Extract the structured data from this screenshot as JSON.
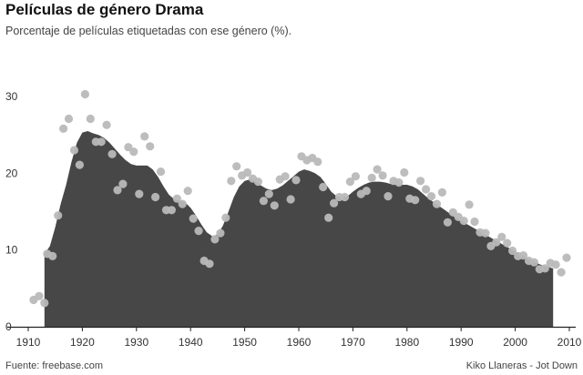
{
  "chart_data": {
    "type": "area",
    "title": "Películas de género Drama",
    "subtitle": "Porcentaje de películas etiquetadas con ese género (%).",
    "source": "Fuente: freebase.com",
    "credit": "Kiko Llaneras - Jot Down",
    "xlim": [
      1910,
      2010
    ],
    "ylim": [
      0,
      32
    ],
    "xticks": [
      1910,
      1920,
      1930,
      1940,
      1950,
      1960,
      1970,
      1980,
      1990,
      2000,
      2010
    ],
    "yticks": [
      0,
      10,
      20,
      30
    ],
    "grid": false,
    "colors": {
      "area": "#474747",
      "points": "#b9b9b9",
      "axis": "#222222"
    },
    "series": [
      {
        "type": "area",
        "x": [
          1913,
          1914,
          1915,
          1916,
          1917,
          1918,
          1919,
          1920,
          1921,
          1922,
          1923,
          1924,
          1925,
          1926,
          1927,
          1928,
          1929,
          1930,
          1931,
          1932,
          1933,
          1934,
          1935,
          1936,
          1937,
          1938,
          1939,
          1940,
          1941,
          1942,
          1943,
          1944,
          1945,
          1946,
          1947,
          1948,
          1949,
          1950,
          1951,
          1952,
          1953,
          1954,
          1955,
          1956,
          1957,
          1958,
          1959,
          1960,
          1961,
          1962,
          1963,
          1964,
          1965,
          1966,
          1967,
          1968,
          1969,
          1970,
          1971,
          1972,
          1973,
          1974,
          1975,
          1976,
          1977,
          1978,
          1979,
          1980,
          1981,
          1982,
          1983,
          1984,
          1985,
          1986,
          1987,
          1988,
          1989,
          1990,
          1991,
          1992,
          1993,
          1994,
          1995,
          1996,
          1997,
          1998,
          1999,
          2000,
          2001,
          2002,
          2003,
          2004,
          2005,
          2006,
          2007
        ],
        "values": [
          9.5,
          10.5,
          13.0,
          16.0,
          18.5,
          21.5,
          24.0,
          25.3,
          25.5,
          25.2,
          25.0,
          24.6,
          24.0,
          23.2,
          22.4,
          21.7,
          21.2,
          21.0,
          21.0,
          21.0,
          20.5,
          19.5,
          18.3,
          17.2,
          16.6,
          16.4,
          16.2,
          15.5,
          14.5,
          13.3,
          12.3,
          11.8,
          12.0,
          13.2,
          15.0,
          16.9,
          18.3,
          19.0,
          19.2,
          18.9,
          18.4,
          18.0,
          17.8,
          18.0,
          18.4,
          19.0,
          19.6,
          20.2,
          20.5,
          20.3,
          20.0,
          19.5,
          18.6,
          17.6,
          17.0,
          16.8,
          17.0,
          17.6,
          18.1,
          18.5,
          18.8,
          18.9,
          18.9,
          18.8,
          18.6,
          18.5,
          18.5,
          18.5,
          18.3,
          17.9,
          17.3,
          16.7,
          16.2,
          15.7,
          15.2,
          14.7,
          14.2,
          13.8,
          13.4,
          13.0,
          12.6,
          12.2,
          11.8,
          11.4,
          11.0,
          10.6,
          10.2,
          9.8,
          9.4,
          9.0,
          8.6,
          8.3,
          8.0,
          7.8,
          7.6
        ]
      },
      {
        "type": "scatter",
        "points": [
          [
            1911,
            3.5
          ],
          [
            1912,
            4.0
          ],
          [
            1913,
            3.1
          ],
          [
            1913.5,
            9.5
          ],
          [
            1914.5,
            9.2
          ],
          [
            1915.5,
            14.5
          ],
          [
            1916.5,
            25.8
          ],
          [
            1917.5,
            27.1
          ],
          [
            1918.5,
            23.0
          ],
          [
            1919.5,
            21.1
          ],
          [
            1920.5,
            30.3
          ],
          [
            1921.5,
            27.1
          ],
          [
            1922.5,
            24.1
          ],
          [
            1923.5,
            24.1
          ],
          [
            1924.5,
            26.3
          ],
          [
            1925.5,
            22.5
          ],
          [
            1926.5,
            17.8
          ],
          [
            1927.5,
            18.6
          ],
          [
            1928.5,
            23.4
          ],
          [
            1929.5,
            22.8
          ],
          [
            1930.5,
            17.3
          ],
          [
            1931.5,
            24.8
          ],
          [
            1932.5,
            23.5
          ],
          [
            1933.5,
            16.9
          ],
          [
            1934.5,
            20.2
          ],
          [
            1935.5,
            15.2
          ],
          [
            1936.5,
            15.2
          ],
          [
            1937.5,
            16.7
          ],
          [
            1938.5,
            16.0
          ],
          [
            1939.5,
            17.7
          ],
          [
            1940.5,
            14.1
          ],
          [
            1941.5,
            12.5
          ],
          [
            1942.5,
            8.6
          ],
          [
            1943.5,
            8.2
          ],
          [
            1944.5,
            11.4
          ],
          [
            1945.5,
            12.2
          ],
          [
            1946.5,
            14.2
          ],
          [
            1947.5,
            19.0
          ],
          [
            1948.5,
            20.9
          ],
          [
            1949.5,
            19.7
          ],
          [
            1950.5,
            20.1
          ],
          [
            1951.5,
            19.3
          ],
          [
            1952.5,
            18.9
          ],
          [
            1953.5,
            16.4
          ],
          [
            1954.5,
            17.3
          ],
          [
            1955.5,
            15.8
          ],
          [
            1956.5,
            19.2
          ],
          [
            1957.5,
            19.6
          ],
          [
            1958.5,
            16.6
          ],
          [
            1959.5,
            19.1
          ],
          [
            1960.5,
            22.2
          ],
          [
            1961.5,
            21.7
          ],
          [
            1962.5,
            22.0
          ],
          [
            1963.5,
            21.5
          ],
          [
            1964.5,
            18.2
          ],
          [
            1965.5,
            14.2
          ],
          [
            1966.5,
            16.1
          ],
          [
            1967.5,
            16.9
          ],
          [
            1968.5,
            16.9
          ],
          [
            1969.5,
            18.9
          ],
          [
            1970.5,
            19.6
          ],
          [
            1971.5,
            17.3
          ],
          [
            1972.5,
            17.7
          ],
          [
            1973.5,
            19.4
          ],
          [
            1974.5,
            20.5
          ],
          [
            1975.5,
            19.7
          ],
          [
            1976.5,
            17.0
          ],
          [
            1977.5,
            19.0
          ],
          [
            1978.5,
            18.8
          ],
          [
            1979.5,
            20.1
          ],
          [
            1980.5,
            16.7
          ],
          [
            1981.5,
            16.5
          ],
          [
            1982.5,
            19.0
          ],
          [
            1983.5,
            17.9
          ],
          [
            1984.5,
            17.0
          ],
          [
            1985.5,
            16.0
          ],
          [
            1986.5,
            17.5
          ],
          [
            1987.5,
            13.6
          ],
          [
            1988.5,
            14.9
          ],
          [
            1989.5,
            14.3
          ],
          [
            1990.5,
            13.8
          ],
          [
            1991.5,
            15.9
          ],
          [
            1992.5,
            13.7
          ],
          [
            1993.5,
            12.3
          ],
          [
            1994.5,
            12.2
          ],
          [
            1995.5,
            10.5
          ],
          [
            1996.5,
            11.0
          ],
          [
            1997.5,
            11.7
          ],
          [
            1998.5,
            10.9
          ],
          [
            1999.5,
            9.9
          ],
          [
            2000.5,
            9.2
          ],
          [
            2001.5,
            9.3
          ],
          [
            2002.5,
            8.6
          ],
          [
            2003.5,
            8.4
          ],
          [
            2004.5,
            7.5
          ],
          [
            2005.5,
            7.6
          ],
          [
            2006.5,
            8.3
          ],
          [
            2007.5,
            8.1
          ],
          [
            2008.5,
            7.1
          ],
          [
            2009.5,
            9.0
          ]
        ]
      }
    ]
  }
}
